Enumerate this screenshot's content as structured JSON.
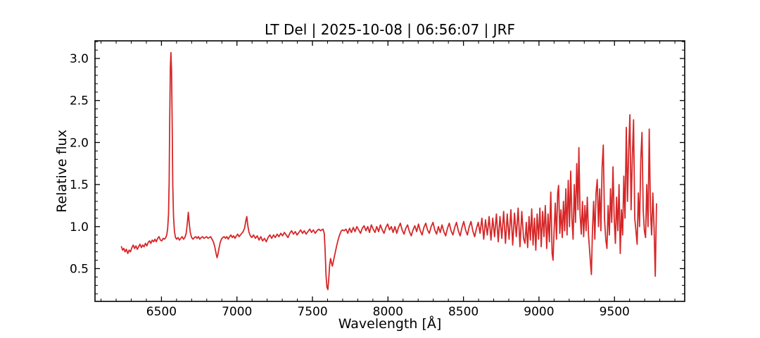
{
  "figure": {
    "background": "#ffffff",
    "frame_color": "#000000",
    "text_color": "#000000"
  },
  "chart_data": {
    "type": "line",
    "title": "LT Del | 2025-10-08 | 06:56:07 | JRF",
    "xlabel": "Wavelength [Å]",
    "ylabel": "Relative flux",
    "line_color": "#d62728",
    "line_width": 1.8,
    "grid": false,
    "legend": null,
    "xlim": [
      6060,
      9965
    ],
    "ylim": [
      0.11,
      3.21
    ],
    "xticks": {
      "major": [
        6500,
        7000,
        7500,
        8000,
        8500,
        9000,
        9500
      ],
      "labels": [
        "6500",
        "7000",
        "7500",
        "8000",
        "8500",
        "9000",
        "9500"
      ],
      "minor_step": 100
    },
    "yticks": {
      "major": [
        0.5,
        1.0,
        1.5,
        2.0,
        2.5,
        3.0
      ],
      "labels": [
        "0.5",
        "1.0",
        "1.5",
        "2.0",
        "2.5",
        "3.0"
      ],
      "minor_step": 0.1
    },
    "annotations": {
      "emission_peak_wavelength": 6563,
      "emission_peak_flux": 3.07,
      "telluric_band_wavelength": 7600,
      "telluric_band_min_flux": 0.25
    },
    "series": [
      {
        "name": "spectrum",
        "x": [
          6235,
          6243,
          6251,
          6259,
          6268,
          6277,
          6286,
          6295,
          6304,
          6313,
          6322,
          6331,
          6340,
          6349,
          6358,
          6367,
          6376,
          6385,
          6394,
          6403,
          6412,
          6421,
          6430,
          6439,
          6448,
          6457,
          6466,
          6475,
          6484,
          6493,
          6502,
          6511,
          6520,
          6529,
          6535,
          6541,
          6547,
          6551,
          6555,
          6559,
          6563,
          6567,
          6571,
          6575,
          6580,
          6586,
          6593,
          6601,
          6610,
          6619,
          6628,
          6637,
          6646,
          6655,
          6664,
          6671,
          6678,
          6684,
          6691,
          6700,
          6709,
          6718,
          6727,
          6736,
          6745,
          6754,
          6763,
          6772,
          6781,
          6790,
          6799,
          6808,
          6817,
          6826,
          6835,
          6844,
          6853,
          6862,
          6868,
          6874,
          6881,
          6889,
          6897,
          6906,
          6915,
          6924,
          6933,
          6942,
          6951,
          6960,
          6969,
          6978,
          6987,
          6996,
          7005,
          7014,
          7023,
          7032,
          7041,
          7050,
          7058,
          7065,
          7072,
          7080,
          7089,
          7098,
          7110,
          7122,
          7134,
          7146,
          7158,
          7170,
          7182,
          7194,
          7206,
          7218,
          7230,
          7242,
          7254,
          7266,
          7278,
          7290,
          7302,
          7314,
          7326,
          7338,
          7350,
          7362,
          7374,
          7386,
          7398,
          7410,
          7422,
          7434,
          7446,
          7458,
          7470,
          7482,
          7494,
          7506,
          7518,
          7530,
          7542,
          7554,
          7562,
          7570,
          7578,
          7584,
          7590,
          7596,
          7602,
          7608,
          7614,
          7620,
          7626,
          7632,
          7638,
          7645,
          7652,
          7660,
          7668,
          7676,
          7684,
          7692,
          7700,
          7710,
          7722,
          7734,
          7746,
          7758,
          7770,
          7782,
          7794,
          7806,
          7818,
          7830,
          7842,
          7854,
          7866,
          7878,
          7890,
          7902,
          7914,
          7926,
          7938,
          7950,
          7962,
          7974,
          7986,
          7998,
          8010,
          8022,
          8034,
          8046,
          8058,
          8070,
          8082,
          8094,
          8106,
          8118,
          8130,
          8142,
          8154,
          8166,
          8178,
          8190,
          8202,
          8214,
          8226,
          8238,
          8250,
          8262,
          8274,
          8286,
          8298,
          8310,
          8322,
          8334,
          8346,
          8358,
          8370,
          8382,
          8394,
          8406,
          8418,
          8430,
          8442,
          8454,
          8466,
          8478,
          8490,
          8502,
          8514,
          8526,
          8538,
          8550,
          8562,
          8574,
          8586,
          8598,
          8610,
          8622,
          8634,
          8646,
          8658,
          8670,
          8682,
          8694,
          8706,
          8718,
          8730,
          8742,
          8754,
          8766,
          8778,
          8790,
          8802,
          8814,
          8826,
          8838,
          8850,
          8862,
          8874,
          8886,
          8898,
          8907,
          8916,
          8925,
          8934,
          8943,
          8952,
          8961,
          8970,
          8979,
          8988,
          8997,
          9006,
          9015,
          9024,
          9033,
          9042,
          9051,
          9060,
          9069,
          9078,
          9087,
          9093,
          9100,
          9108,
          9116,
          9124,
          9130,
          9138,
          9146,
          9154,
          9162,
          9170,
          9178,
          9186,
          9194,
          9202,
          9210,
          9218,
          9226,
          9234,
          9242,
          9250,
          9258,
          9264,
          9272,
          9280,
          9288,
          9296,
          9304,
          9312,
          9320,
          9328,
          9336,
          9344,
          9347,
          9354,
          9362,
          9370,
          9378,
          9386,
          9394,
          9402,
          9410,
          9418,
          9426,
          9434,
          9442,
          9450,
          9458,
          9466,
          9474,
          9482,
          9490,
          9498,
          9506,
          9514,
          9522,
          9530,
          9538,
          9546,
          9554,
          9562,
          9570,
          9578,
          9586,
          9594,
          9602,
          9610,
          9618,
          9626,
          9634,
          9642,
          9650,
          9658,
          9666,
          9674,
          9682,
          9690,
          9698,
          9706,
          9714,
          9722,
          9730,
          9738,
          9746,
          9754,
          9762,
          9770,
          9778
        ],
        "y": [
          0.76,
          0.72,
          0.74,
          0.7,
          0.73,
          0.68,
          0.72,
          0.7,
          0.75,
          0.78,
          0.74,
          0.77,
          0.73,
          0.76,
          0.79,
          0.75,
          0.78,
          0.76,
          0.8,
          0.77,
          0.81,
          0.83,
          0.8,
          0.84,
          0.82,
          0.85,
          0.82,
          0.86,
          0.88,
          0.84,
          0.83,
          0.86,
          0.85,
          0.87,
          0.9,
          0.97,
          1.15,
          1.55,
          2.3,
          2.9,
          3.07,
          2.85,
          2.2,
          1.5,
          1.12,
          0.94,
          0.87,
          0.85,
          0.87,
          0.84,
          0.86,
          0.88,
          0.85,
          0.87,
          0.92,
          1.03,
          1.17,
          1.04,
          0.93,
          0.87,
          0.85,
          0.87,
          0.88,
          0.86,
          0.88,
          0.85,
          0.87,
          0.88,
          0.86,
          0.87,
          0.88,
          0.86,
          0.87,
          0.88,
          0.85,
          0.82,
          0.76,
          0.68,
          0.63,
          0.67,
          0.74,
          0.81,
          0.85,
          0.87,
          0.88,
          0.86,
          0.88,
          0.85,
          0.88,
          0.9,
          0.87,
          0.89,
          0.86,
          0.89,
          0.91,
          0.88,
          0.9,
          0.92,
          0.94,
          0.98,
          1.06,
          1.12,
          1.01,
          0.93,
          0.89,
          0.87,
          0.9,
          0.86,
          0.89,
          0.84,
          0.88,
          0.83,
          0.86,
          0.82,
          0.87,
          0.9,
          0.86,
          0.9,
          0.87,
          0.91,
          0.88,
          0.92,
          0.89,
          0.93,
          0.9,
          0.87,
          0.92,
          0.95,
          0.91,
          0.94,
          0.9,
          0.93,
          0.96,
          0.92,
          0.95,
          0.91,
          0.94,
          0.97,
          0.93,
          0.96,
          0.92,
          0.95,
          0.97,
          0.95,
          0.96,
          0.97,
          0.92,
          0.72,
          0.42,
          0.28,
          0.25,
          0.38,
          0.55,
          0.62,
          0.57,
          0.53,
          0.58,
          0.64,
          0.7,
          0.77,
          0.83,
          0.88,
          0.92,
          0.95,
          0.96,
          0.95,
          0.97,
          0.92,
          0.98,
          0.93,
          0.99,
          0.94,
          1.0,
          0.96,
          0.92,
          0.98,
          1.01,
          0.95,
          1.0,
          0.93,
          1.02,
          0.97,
          0.93,
          1.0,
          0.94,
          1.02,
          0.96,
          0.92,
          0.99,
          1.03,
          0.96,
          1.0,
          0.93,
          1.0,
          0.92,
          0.99,
          1.04,
          0.96,
          0.91,
          0.98,
          1.02,
          0.94,
          0.89,
          0.96,
          1.01,
          0.94,
          1.03,
          0.95,
          0.9,
          0.99,
          1.04,
          0.96,
          0.92,
          1.0,
          1.05,
          0.96,
          0.91,
          1.0,
          0.93,
          1.02,
          0.94,
          0.89,
          0.98,
          1.04,
          0.95,
          0.9,
          0.99,
          1.05,
          0.95,
          0.89,
          0.99,
          1.06,
          0.96,
          0.9,
          1.0,
          1.06,
          0.95,
          0.88,
          0.98,
          1.05,
          0.92,
          1.1,
          0.85,
          1.08,
          0.9,
          1.12,
          0.84,
          1.1,
          0.88,
          1.15,
          0.82,
          1.12,
          0.86,
          1.18,
          0.8,
          1.15,
          0.85,
          1.2,
          0.78,
          1.16,
          0.88,
          1.22,
          0.76,
          1.18,
          0.86,
          0.8,
          1.05,
          0.75,
          1.12,
          0.84,
          1.21,
          0.78,
          1.1,
          0.72,
          1.15,
          0.85,
          1.22,
          0.76,
          1.18,
          0.88,
          1.25,
          0.74,
          1.15,
          0.82,
          1.41,
          0.68,
          0.6,
          0.95,
          1.28,
          0.85,
          1.4,
          1.49,
          0.92,
          1.2,
          0.87,
          1.3,
          0.95,
          1.45,
          0.9,
          1.55,
          1.0,
          1.66,
          1.1,
          0.85,
          1.5,
          1.05,
          1.75,
          1.2,
          1.94,
          1.15,
          0.91,
          1.3,
          0.88,
          1.25,
          0.95,
          1.35,
          0.9,
          0.7,
          0.5,
          0.43,
          0.95,
          1.3,
          0.85,
          1.4,
          1.56,
          1.0,
          1.45,
          0.95,
          1.7,
          1.97,
          1.1,
          0.85,
          0.74,
          1.25,
          0.9,
          1.45,
          1.05,
          1.71,
          1.1,
          0.8,
          1.35,
          0.95,
          1.5,
          0.68,
          1.2,
          0.9,
          1.6,
          1.1,
          2.18,
          1.3,
          1.9,
          2.33,
          1.2,
          1.8,
          2.27,
          1.1,
          0.95,
          0.79,
          1.4,
          1.0,
          1.8,
          2.12,
          1.2,
          0.95,
          0.87,
          1.5,
          1.0,
          2.16,
          1.2,
          0.9,
          1.4,
          1.0,
          0.41,
          1.27
        ]
      }
    ]
  }
}
